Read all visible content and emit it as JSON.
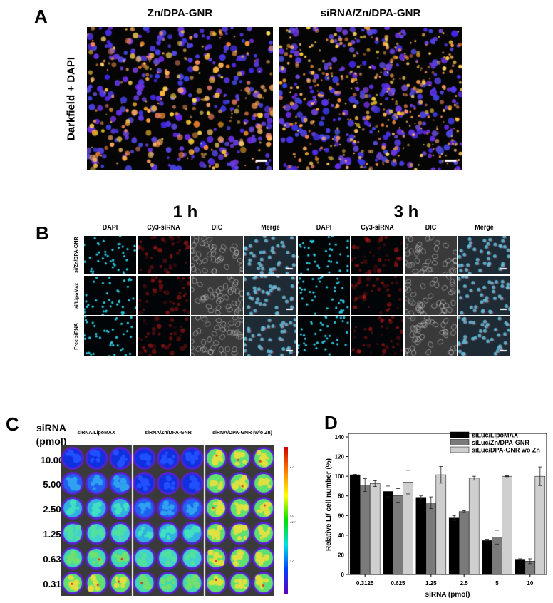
{
  "panel_a": {
    "label": "A",
    "side_label": "Darkfield + DAPI",
    "columns": [
      "Zn/DPA-GNR",
      "siRNA/Zn/DPA-GNR"
    ]
  },
  "panel_b": {
    "label": "B",
    "timepoints": [
      "1 h",
      "3 h"
    ],
    "channels": [
      "DAPI",
      "Cy3-siRNA",
      "DIC",
      "Merge"
    ],
    "rows": [
      "si/Zn/DPA-GNR",
      "si/LipoMax",
      "Free siRNA"
    ]
  },
  "panel_c": {
    "label": "C",
    "row_title": "siRNA",
    "row_unit": "(pmol)",
    "rows": [
      "10.00",
      "5.00",
      "2.50",
      "1.25",
      "0.63",
      "0.31"
    ],
    "columns": [
      "siRNA/LipoMAX",
      "siRNA/Zn/DPA-GNR",
      "siRNA/DPA-GNR (w/o Zn)"
    ],
    "colorbar_ticks": [
      "6.0",
      "4.0",
      "2.0"
    ],
    "colorbar_unit": "x10⁶"
  },
  "chart_data": {
    "label": "D",
    "type": "bar",
    "categories": [
      "0.3125",
      "0.625",
      "1.25",
      "2.5",
      "5",
      "10"
    ],
    "xlabel": "siRNA (pmol)",
    "ylabel": "Relative LI/ cell number (%)",
    "ylim": [
      0,
      140
    ],
    "yticks": [
      "0",
      "20",
      "40",
      "60",
      "80",
      "100",
      "120",
      "140"
    ],
    "legend_position": "top-right",
    "series": [
      {
        "name": "siLuc/LipoMAX",
        "color": "#000000",
        "values": [
          101.5,
          84.5,
          78.5,
          57.5,
          34.5,
          15.5
        ],
        "errors": [
          0.5,
          5.5,
          1.5,
          2.5,
          1.5,
          0.5
        ]
      },
      {
        "name": "siLuc/Zn/DPA-GNR",
        "color": "#7a7a7a",
        "values": [
          91,
          80.5,
          73,
          64,
          38,
          13.5
        ],
        "errors": [
          6.5,
          7,
          6,
          1,
          7,
          2.5
        ]
      },
      {
        "name": "siLuc/DPA-GNR wo Zn",
        "color": "#cfcfcf",
        "values": [
          92.5,
          94,
          101.5,
          98,
          100,
          100
        ],
        "errors": [
          3,
          12,
          8.5,
          2,
          0.5,
          9.5
        ]
      }
    ]
  }
}
